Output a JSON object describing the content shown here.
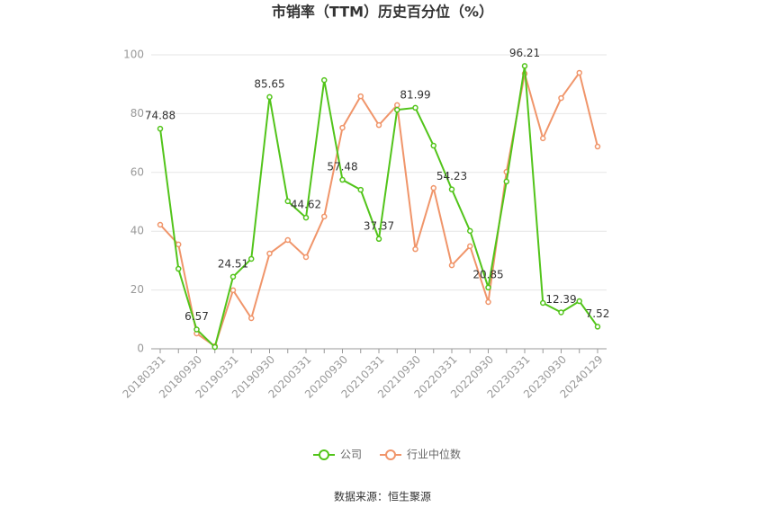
{
  "chart_data": {
    "type": "line",
    "title": "市销率（TTM）历史百分位（%）",
    "source": "数据来源：恒生聚源",
    "categories": [
      "20180331",
      null,
      "20180930",
      null,
      "20190331",
      null,
      "20190930",
      null,
      "20200331",
      null,
      "20200930",
      null,
      "20210331",
      null,
      "20210930",
      null,
      "20220331",
      null,
      "20220930",
      null,
      "20230331",
      null,
      "20230930",
      null,
      "20240129"
    ],
    "series": [
      {
        "name": "公司",
        "color": "#52c41a",
        "values": [
          74.88,
          27.2,
          6.57,
          0.6,
          24.51,
          30.6,
          85.65,
          50.2,
          44.62,
          91.4,
          57.48,
          54.1,
          37.37,
          81.3,
          81.99,
          69.1,
          54.23,
          40.1,
          20.85,
          56.9,
          96.21,
          15.6,
          12.39,
          16.2,
          7.52
        ],
        "value_labels": [
          "74.88",
          null,
          "6.57",
          null,
          "24.51",
          null,
          "85.65",
          null,
          "44.62",
          null,
          "57.48",
          null,
          "37.37",
          null,
          "81.99",
          null,
          "54.23",
          null,
          "20.85",
          null,
          "96.21",
          null,
          "12.39",
          null,
          "7.52"
        ]
      },
      {
        "name": "行业中位数",
        "color": "#f0956a",
        "values": [
          42.2,
          35.5,
          5.2,
          0.9,
          19.9,
          10.4,
          32.4,
          37.0,
          31.2,
          45.0,
          75.2,
          85.9,
          76.1,
          82.9,
          33.9,
          54.7,
          28.4,
          34.9,
          15.9,
          60.2,
          93.6,
          71.6,
          85.3,
          93.9,
          68.8
        ]
      }
    ],
    "ylim": [
      0,
      100
    ],
    "yticks": [
      0,
      20,
      40,
      60,
      80,
      100
    ],
    "grid": true,
    "legend": "bottom"
  }
}
